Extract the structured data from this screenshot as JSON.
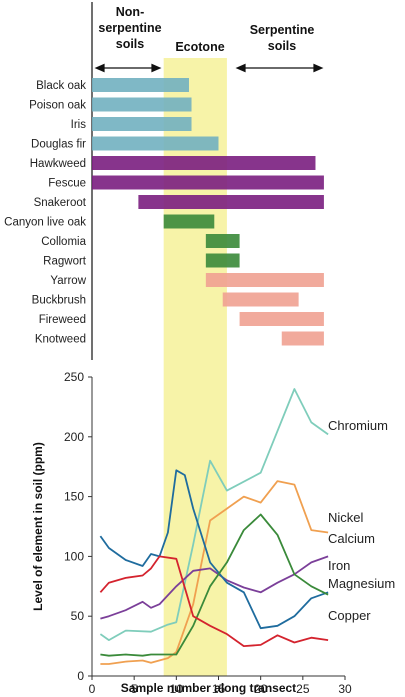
{
  "zones": {
    "nonserpentine": [
      "Non-",
      "serpentine",
      "soils"
    ],
    "ecotone": "Ecotone",
    "serpentine": [
      "Serpentine",
      "soils"
    ]
  },
  "chart_data": [
    {
      "type": "bar",
      "orientation": "horizontal-range",
      "x_axis": "Sample number along transect (shared with lower chart)",
      "ecotone_x_range": [
        8.5,
        16
      ],
      "species": [
        {
          "name": "Black oak",
          "start": 0,
          "end": 11.5,
          "color": "#71b0c0"
        },
        {
          "name": "Poison oak",
          "start": 0,
          "end": 11.8,
          "color": "#71b0c0"
        },
        {
          "name": "Iris",
          "start": 0,
          "end": 11.8,
          "color": "#71b0c0"
        },
        {
          "name": "Douglas fir",
          "start": 0,
          "end": 15,
          "color": "#71b0c0"
        },
        {
          "name": "Hawkweed",
          "start": 0,
          "end": 26.5,
          "color": "#7a1e7f"
        },
        {
          "name": "Fescue",
          "start": 0,
          "end": 27.5,
          "color": "#7a1e7f"
        },
        {
          "name": "Snakeroot",
          "start": 5.5,
          "end": 27.5,
          "color": "#7a1e7f"
        },
        {
          "name": "Canyon live oak",
          "start": 8.5,
          "end": 14.5,
          "color": "#3a8a3a"
        },
        {
          "name": "Collomia",
          "start": 13.5,
          "end": 17.5,
          "color": "#3a8a3a"
        },
        {
          "name": "Ragwort",
          "start": 13.5,
          "end": 17.5,
          "color": "#3a8a3a"
        },
        {
          "name": "Yarrow",
          "start": 13.5,
          "end": 27.5,
          "color": "#f0a191"
        },
        {
          "name": "Buckbrush",
          "start": 15.5,
          "end": 24.5,
          "color": "#f0a191"
        },
        {
          "name": "Fireweed",
          "start": 17.5,
          "end": 27.5,
          "color": "#f0a191"
        },
        {
          "name": "Knotweed",
          "start": 22.5,
          "end": 27.5,
          "color": "#f0a191"
        }
      ]
    },
    {
      "type": "line",
      "xlabel": "Sample number along transect",
      "ylabel": "Level of element in soil (ppm)",
      "xlim": [
        0,
        30
      ],
      "ylim": [
        0,
        250
      ],
      "xticks": [
        0,
        5,
        10,
        15,
        20,
        25,
        30
      ],
      "yticks": [
        0,
        50,
        100,
        150,
        200,
        250
      ],
      "ecotone_x_range": [
        8.5,
        16
      ],
      "series": [
        {
          "name": "Chromium",
          "color": "#7fcdbb",
          "x": [
            1,
            2,
            4,
            7,
            9,
            10,
            12,
            13,
            14,
            16,
            20,
            24,
            26,
            28
          ],
          "y": [
            35,
            30,
            38,
            37,
            43,
            45,
            110,
            145,
            180,
            155,
            170,
            240,
            212,
            202
          ]
        },
        {
          "name": "Nickel",
          "color": "#f0a050",
          "x": [
            1,
            2,
            4,
            6,
            7,
            9,
            10,
            12,
            14,
            16,
            18,
            20,
            22,
            24,
            26,
            28
          ],
          "y": [
            10,
            10,
            12,
            13,
            11,
            15,
            20,
            60,
            130,
            140,
            150,
            145,
            163,
            160,
            122,
            120
          ]
        },
        {
          "name": "Calcium",
          "color": "#7b3f99",
          "x": [
            1,
            2,
            4,
            6,
            7,
            8,
            10,
            12,
            14,
            16,
            18,
            20,
            22,
            24,
            26,
            28
          ],
          "y": [
            48,
            50,
            55,
            62,
            57,
            60,
            75,
            88,
            90,
            80,
            74,
            70,
            78,
            85,
            95,
            100
          ]
        },
        {
          "name": "Iron",
          "color": "#1f6c9e",
          "x": [
            1,
            2,
            4,
            6,
            7,
            8,
            9,
            10,
            11,
            12,
            14,
            16,
            18,
            20,
            22,
            24,
            26,
            28
          ],
          "y": [
            117,
            107,
            97,
            92,
            102,
            100,
            120,
            172,
            168,
            140,
            95,
            78,
            70,
            40,
            42,
            50,
            65,
            70
          ]
        },
        {
          "name": "Magnesium",
          "color": "#3a8a3a",
          "x": [
            1,
            2,
            4,
            6,
            7,
            8,
            10,
            12,
            14,
            16,
            18,
            20,
            22,
            24,
            26,
            28
          ],
          "y": [
            18,
            17,
            18,
            17,
            18,
            18,
            18,
            42,
            75,
            95,
            122,
            135,
            118,
            85,
            75,
            68
          ]
        },
        {
          "name": "Copper",
          "color": "#d4232e",
          "x": [
            1,
            2,
            4,
            6,
            7,
            8,
            10,
            12,
            14,
            16,
            18,
            20,
            22,
            24,
            26,
            28
          ],
          "y": [
            70,
            78,
            82,
            84,
            90,
            100,
            98,
            50,
            42,
            35,
            25,
            26,
            34,
            28,
            32,
            30
          ]
        }
      ]
    }
  ]
}
